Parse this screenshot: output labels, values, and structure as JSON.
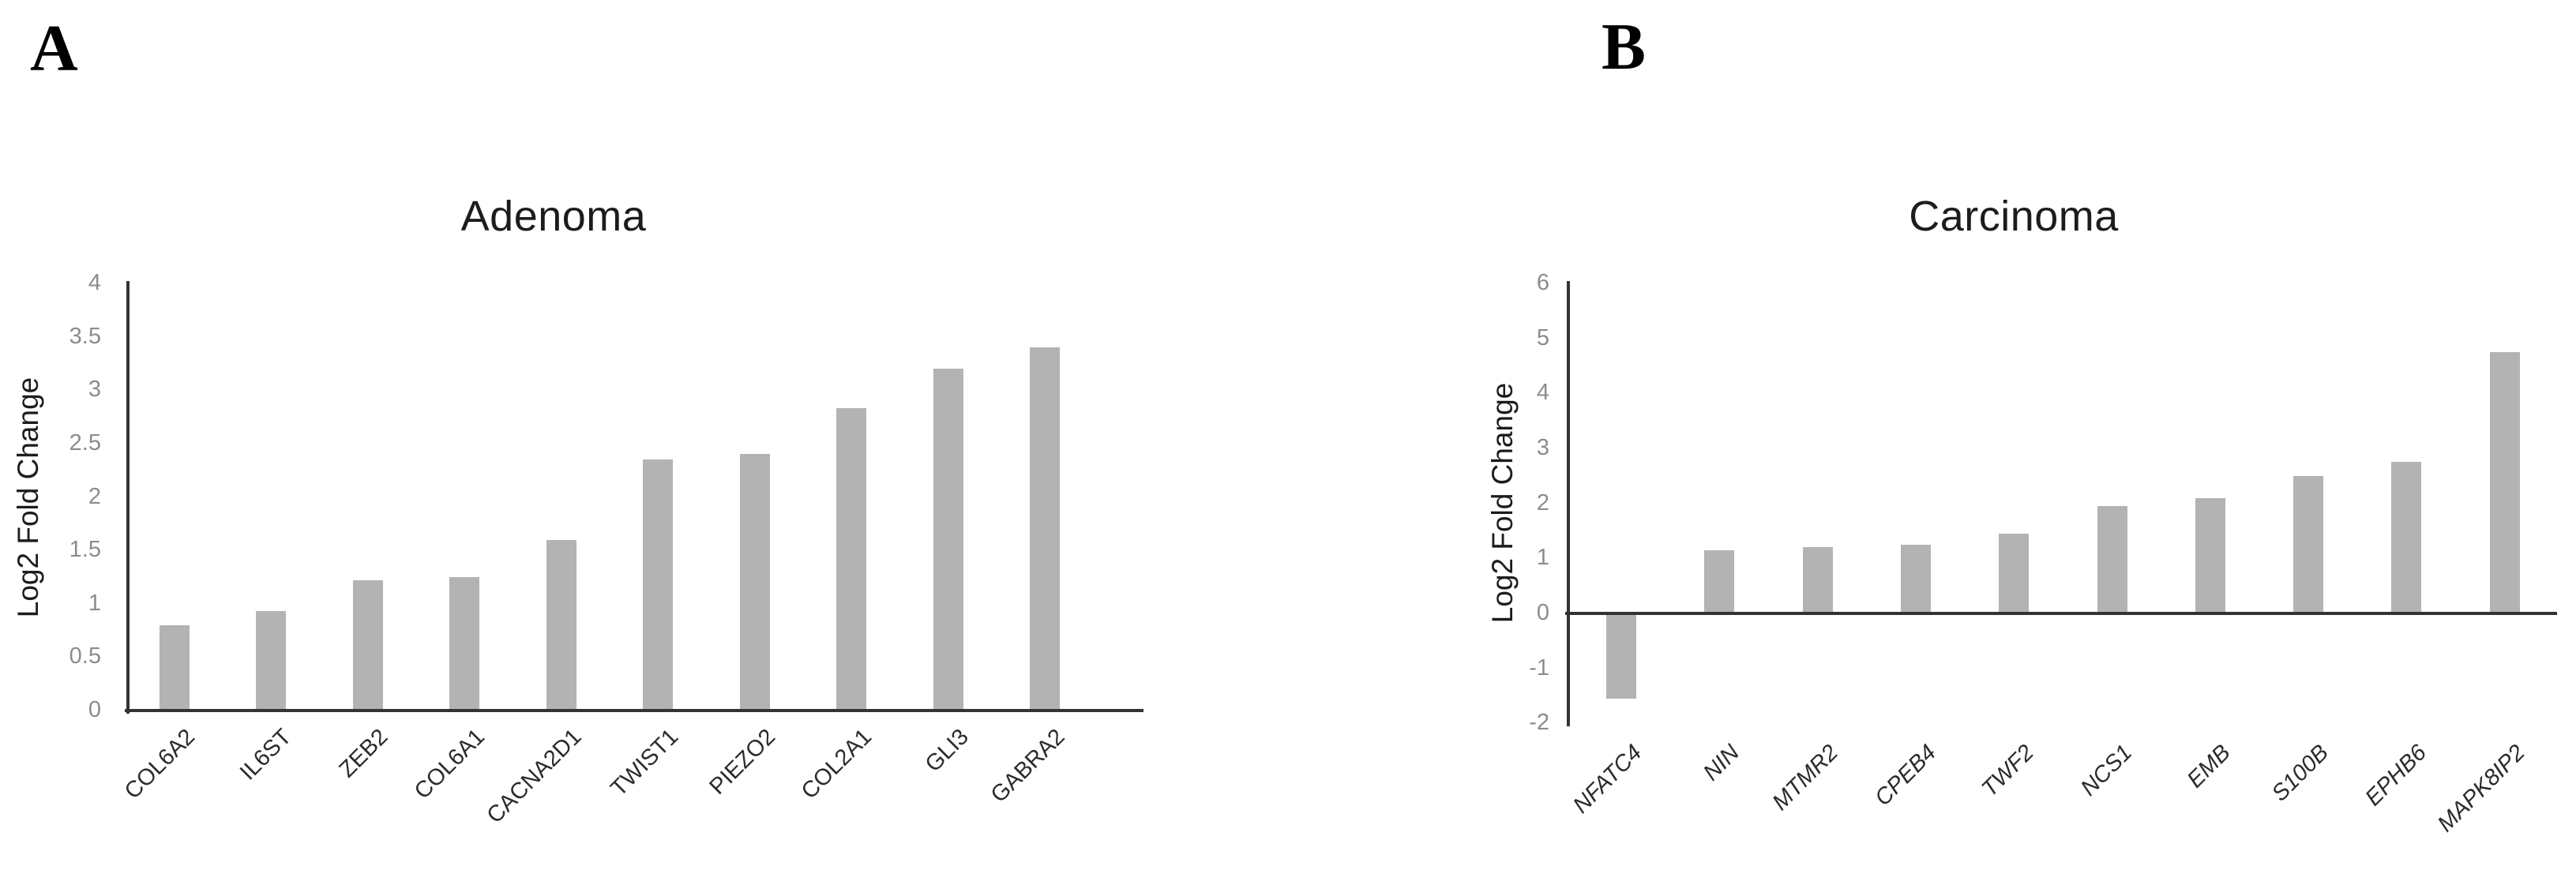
{
  "figure": {
    "background": "#ffffff",
    "panel_a": {
      "label": "A"
    },
    "panel_b": {
      "label": "B"
    }
  },
  "colors": {
    "bar": "#b3b3b3",
    "axis": "#333333",
    "tick_label": "#8c8c8c",
    "title_text": "#1c1c1c",
    "category_label": "#2b2b2b"
  },
  "chart_data": [
    {
      "type": "bar",
      "title": "Adenoma",
      "ylabel": "Log2 Fold Change",
      "xlabel": "",
      "categories": [
        "COL6A2",
        "IL6ST",
        "ZEB2",
        "COL6A1",
        "CACNA2D1",
        "TWIST1",
        "PIEZO2",
        "COL2A1",
        "GLI3",
        "GABRA2"
      ],
      "values": [
        0.8,
        0.93,
        1.22,
        1.25,
        1.6,
        2.35,
        2.4,
        2.83,
        3.2,
        3.4
      ],
      "ylim": [
        0,
        4
      ],
      "yticks": [
        0,
        0.5,
        1,
        1.5,
        2,
        2.5,
        3,
        3.5,
        4
      ],
      "grid": false,
      "legend": "none",
      "bar_color": "#b3b3b3",
      "category_style": "rotated-45"
    },
    {
      "type": "bar",
      "title": "Carcinoma",
      "ylabel": "Log2 Fold Change",
      "xlabel": "",
      "categories": [
        "NFATC4",
        "NIN",
        "MTMR2",
        "CPEB4",
        "TWF2",
        "NCS1",
        "EMB",
        "S100B",
        "EPHB6",
        "MAPK8IP2"
      ],
      "values": [
        -1.55,
        1.15,
        1.2,
        1.25,
        1.45,
        1.95,
        2.1,
        2.5,
        2.75,
        4.75
      ],
      "ylim": [
        -2,
        6
      ],
      "yticks": [
        -2,
        -1,
        0,
        1,
        2,
        3,
        4,
        5,
        6
      ],
      "grid": false,
      "legend": "none",
      "bar_color": "#b3b3b3",
      "category_style": "rotated-45-italic"
    }
  ]
}
